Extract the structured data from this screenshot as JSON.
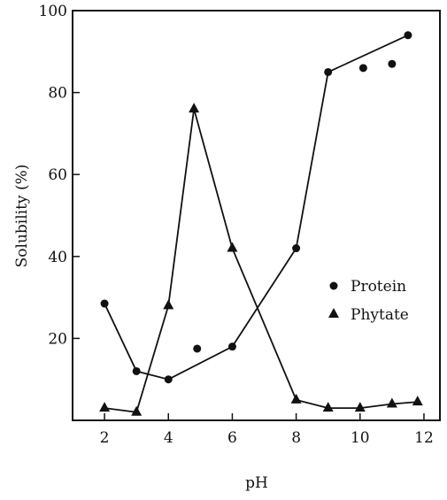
{
  "colors": {
    "ink": "#111111",
    "background": "#ffffff"
  },
  "chart_data": {
    "type": "scatter",
    "title": "",
    "xlabel": "pH",
    "ylabel": "Solubility (%)",
    "xlim": [
      1,
      12.5
    ],
    "ylim": [
      0,
      100
    ],
    "x_ticks": [
      2,
      4,
      6,
      8,
      10,
      12
    ],
    "y_ticks": [
      20,
      40,
      60,
      80,
      100
    ],
    "grid": false,
    "legend_position": "right",
    "series": [
      {
        "name": "Protein",
        "marker": "circle",
        "points": [
          [
            2,
            28.5
          ],
          [
            3,
            12
          ],
          [
            4,
            10
          ],
          [
            4.9,
            17.5
          ],
          [
            6,
            18
          ],
          [
            8,
            42
          ],
          [
            9,
            85
          ],
          [
            10.1,
            86
          ],
          [
            11,
            87
          ],
          [
            11.5,
            94
          ]
        ],
        "line": [
          [
            2,
            28.5
          ],
          [
            3,
            12
          ],
          [
            4,
            10
          ],
          [
            6,
            18
          ],
          [
            8,
            42
          ],
          [
            9,
            85
          ],
          [
            11.5,
            94
          ]
        ]
      },
      {
        "name": "Phytate",
        "marker": "triangle",
        "points": [
          [
            2,
            3
          ],
          [
            3,
            2
          ],
          [
            4,
            28
          ],
          [
            4.8,
            76
          ],
          [
            6,
            42
          ],
          [
            8,
            5
          ],
          [
            9,
            3
          ],
          [
            10,
            3
          ],
          [
            11,
            4
          ],
          [
            11.8,
            4.5
          ]
        ],
        "line": [
          [
            2,
            3
          ],
          [
            3,
            2
          ],
          [
            4,
            28
          ],
          [
            4.8,
            76
          ],
          [
            6,
            42
          ],
          [
            8,
            5
          ],
          [
            9,
            3
          ],
          [
            10,
            3
          ],
          [
            11,
            4
          ],
          [
            11.8,
            4.5
          ]
        ]
      }
    ]
  }
}
